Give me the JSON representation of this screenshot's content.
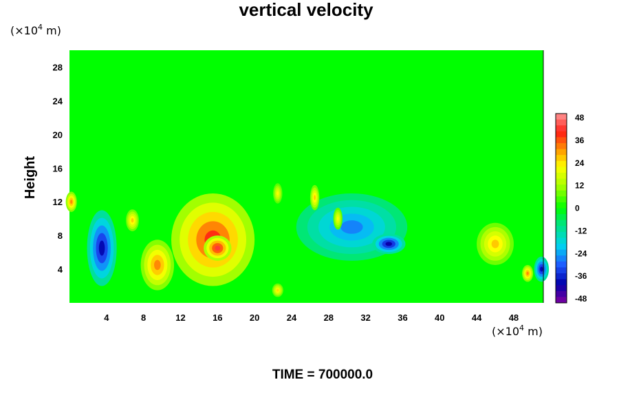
{
  "chart_data": {
    "type": "heatmap",
    "title": "vertical velocity",
    "ylabel": "Height",
    "xlabel": "",
    "y_unit": {
      "prefix": "(×10",
      "exp": "4",
      "suffix": " m)"
    },
    "x_unit": {
      "prefix": "(×10",
      "exp": "4",
      "suffix": " m)"
    },
    "xlim": [
      0,
      51.2
    ],
    "ylim": [
      0,
      30
    ],
    "x_ticks": [
      4,
      8,
      12,
      16,
      20,
      24,
      28,
      32,
      36,
      40,
      44,
      48
    ],
    "y_ticks": [
      4,
      8,
      12,
      16,
      20,
      24,
      28
    ],
    "colorbar": {
      "min": -48,
      "max": 48,
      "ticks": [
        48,
        36,
        24,
        12,
        0,
        -12,
        -24,
        -36,
        -48
      ]
    },
    "footer": "TIME = 700000.0",
    "field_features": [
      {
        "x": 3.5,
        "y": 6.5,
        "rx": 1.6,
        "ry": 4.5,
        "value": -44
      },
      {
        "x": 6.8,
        "y": 9.8,
        "rx": 0.7,
        "ry": 1.3,
        "value": 30
      },
      {
        "x": 9.5,
        "y": 4.5,
        "rx": 1.8,
        "ry": 3.0,
        "value": 36
      },
      {
        "x": 15.5,
        "y": 7.5,
        "rx": 4.5,
        "ry": 5.5,
        "value": 44
      },
      {
        "x": 16.0,
        "y": 6.5,
        "rx": 1.5,
        "ry": 1.5,
        "value": 48
      },
      {
        "x": 22.5,
        "y": 1.5,
        "rx": 0.6,
        "ry": 0.8,
        "value": 28
      },
      {
        "x": 22.5,
        "y": 13.0,
        "rx": 0.5,
        "ry": 1.2,
        "value": 24
      },
      {
        "x": 30.5,
        "y": 9.0,
        "rx": 6.0,
        "ry": 4.0,
        "value": -30
      },
      {
        "x": 34.5,
        "y": 7.0,
        "rx": 1.8,
        "ry": 1.2,
        "value": -46
      },
      {
        "x": 26.5,
        "y": 12.5,
        "rx": 0.5,
        "ry": 1.5,
        "value": 30
      },
      {
        "x": 29.0,
        "y": 10.0,
        "rx": 0.5,
        "ry": 1.3,
        "value": 24
      },
      {
        "x": 46.0,
        "y": 7.0,
        "rx": 2.0,
        "ry": 2.5,
        "value": 30
      },
      {
        "x": 49.5,
        "y": 3.5,
        "rx": 0.6,
        "ry": 1.0,
        "value": 36
      },
      {
        "x": 51.0,
        "y": 4.0,
        "rx": 0.8,
        "ry": 1.5,
        "value": -44
      },
      {
        "x": 0.2,
        "y": 12.0,
        "rx": 0.6,
        "ry": 1.2,
        "value": 36
      }
    ]
  }
}
